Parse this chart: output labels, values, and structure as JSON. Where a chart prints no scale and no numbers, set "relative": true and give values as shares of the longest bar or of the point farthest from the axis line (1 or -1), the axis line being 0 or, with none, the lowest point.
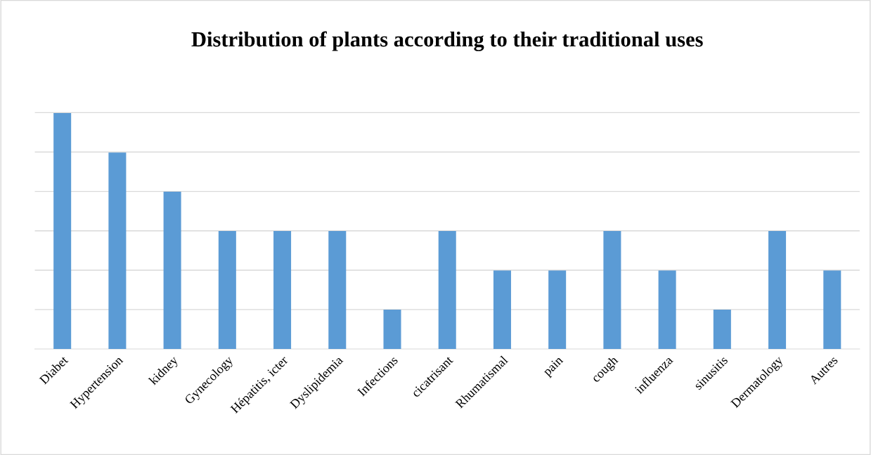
{
  "chart_data": {
    "type": "bar",
    "title": "Distribution of plants according to their traditional uses",
    "categories": [
      "Diabet",
      "Hypertension",
      "kidney",
      "Gynecology",
      "Hépatitis, icter",
      "Dyslipidemia",
      "Infections",
      "cicatrisant",
      "Rhumatismal",
      "pain",
      "cough",
      "influenza",
      "sinusitis",
      "Dermatology",
      "Autres"
    ],
    "values": [
      1,
      0.833,
      0.667,
      0.5,
      0.5,
      0.5,
      0.167,
      0.5,
      0.333,
      0.333,
      0.5,
      0.333,
      0.167,
      0.5,
      0.333
    ],
    "color": "#5b9bd5",
    "relative": true,
    "grid": "y"
  }
}
